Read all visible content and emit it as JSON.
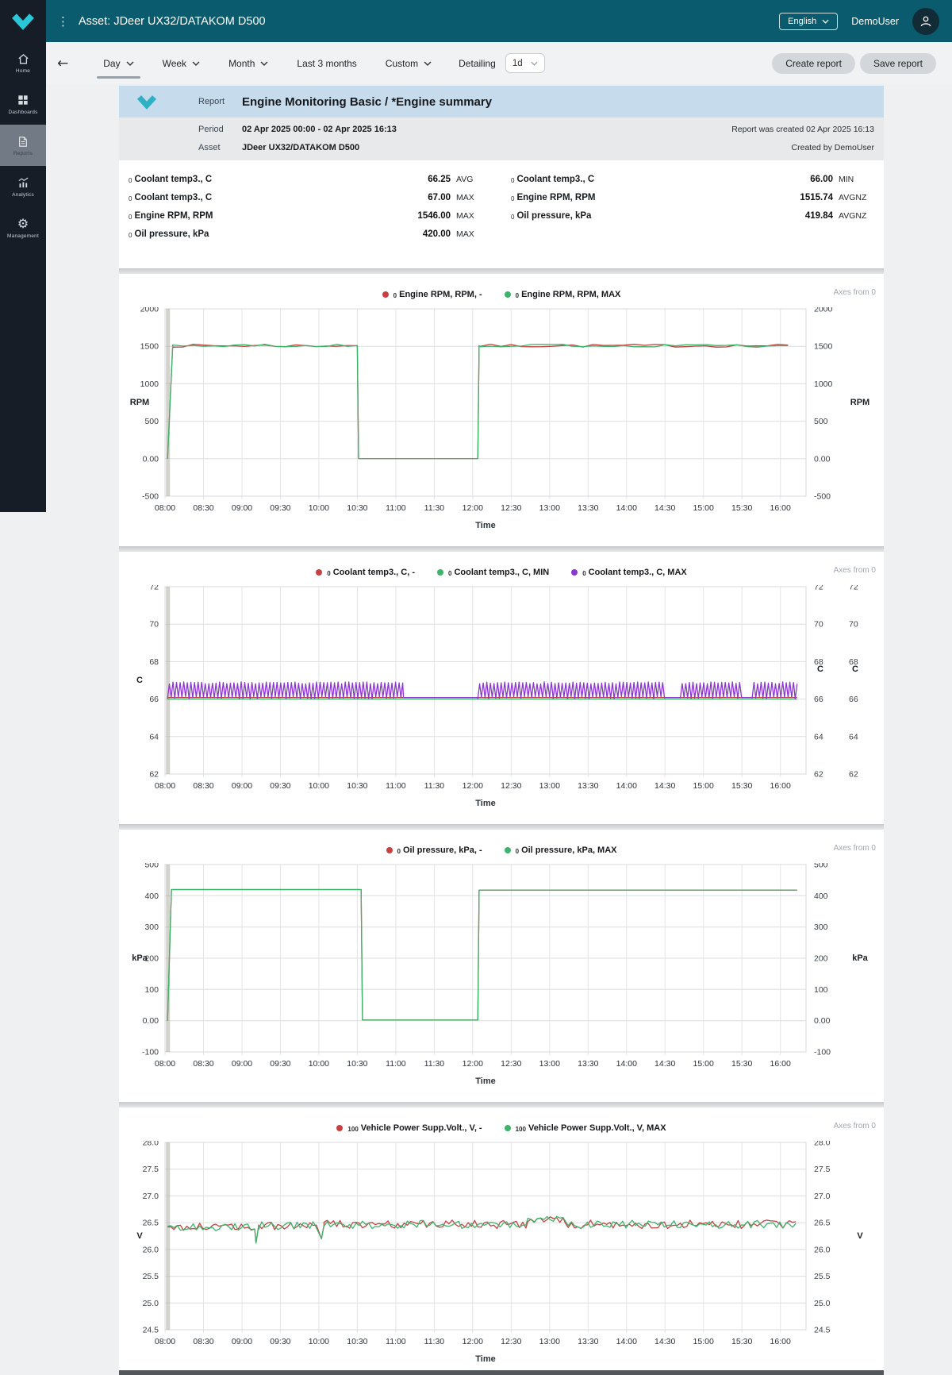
{
  "topbar": {
    "title": "Asset: JDeer UX32/DATAKOM D500",
    "language": "English",
    "user": "DemoUser"
  },
  "sidebar": {
    "items": [
      {
        "label": "Home",
        "icon": "home-icon",
        "active": false
      },
      {
        "label": "Dashboards",
        "icon": "dashboards-icon",
        "active": false
      },
      {
        "label": "Reports",
        "icon": "reports-icon",
        "active": true
      },
      {
        "label": "Analytics",
        "icon": "analytics-icon",
        "active": false
      },
      {
        "label": "Management",
        "icon": "management-icon",
        "active": false
      }
    ]
  },
  "toolbar": {
    "ranges": [
      {
        "label": "Day",
        "chevron": true,
        "active": true
      },
      {
        "label": "Week",
        "chevron": true,
        "active": false
      },
      {
        "label": "Month",
        "chevron": true,
        "active": false
      },
      {
        "label": "Last 3 months",
        "chevron": false,
        "active": false
      },
      {
        "label": "Custom",
        "chevron": true,
        "active": false
      }
    ],
    "detailing_label": "Detailing",
    "detailing_value": "1d",
    "create_label": "Create report",
    "save_label": "Save report"
  },
  "report": {
    "kind_label": "Report",
    "title": "Engine Monitoring Basic / *Engine summary",
    "period_label": "Period",
    "period_value": "02 Apr 2025 00:00 - 02 Apr 2025 16:13",
    "created_note": "Report was created 02 Apr 2025 16:13",
    "asset_label": "Asset",
    "asset_value": "JDeer UX32/DATAKOM D500",
    "created_by": "Created by DemoUser"
  },
  "summary": {
    "left": [
      {
        "prefix": "0",
        "label": "Coolant temp3., C",
        "value": "66.25",
        "unit": "AVG"
      },
      {
        "prefix": "0",
        "label": "Coolant temp3., C",
        "value": "67.00",
        "unit": "MAX"
      },
      {
        "prefix": "0",
        "label": "Engine RPM, RPM",
        "value": "1546.00",
        "unit": "MAX"
      },
      {
        "prefix": "0",
        "label": "Oil pressure, kPa",
        "value": "420.00",
        "unit": "MAX"
      }
    ],
    "right": [
      {
        "prefix": "0",
        "label": "Coolant temp3., C",
        "value": "66.00",
        "unit": "MIN"
      },
      {
        "prefix": "0",
        "label": "Engine RPM, RPM",
        "value": "1515.74",
        "unit": "AVGNZ"
      },
      {
        "prefix": "0",
        "label": "Oil pressure, kPa",
        "value": "419.84",
        "unit": "AVGNZ"
      }
    ]
  },
  "chart_data": [
    {
      "name": "engine-rpm-chart",
      "type": "line",
      "note": "Axes from 0",
      "xlabel": "Time",
      "x_tick_labels": [
        "08:00",
        "08:30",
        "09:00",
        "09:30",
        "10:00",
        "10:30",
        "11:00",
        "11:30",
        "12:00",
        "12:30",
        "13:00",
        "13:30",
        "14:00",
        "14:30",
        "15:00",
        "15:30",
        "16:00"
      ],
      "x_domain_minutes": [
        0,
        500
      ],
      "ylim": [
        -500,
        2000
      ],
      "ytick_values": [
        2000,
        1500,
        1000,
        500,
        0,
        -500
      ],
      "ytick_labels": [
        "2000",
        "1500",
        "1000",
        "500",
        "0.00",
        "-500"
      ],
      "left_unit": "RPM",
      "right_units": [
        "RPM"
      ],
      "gap_band_t": 2,
      "legend": [
        {
          "prefix": "0",
          "label": "Engine RPM, RPM, -",
          "color": "#c94040"
        },
        {
          "prefix": "0",
          "label": "Engine RPM, RPM, MAX",
          "color": "#3bb56a"
        }
      ],
      "series": [
        {
          "name": "Engine RPM, RPM, -",
          "color": "#c94040",
          "segments": [
            {
              "type": "points",
              "pts": [
                [
                  2,
                  0
                ]
              ]
            },
            {
              "type": "ramp",
              "t0": 2,
              "t1": 6,
              "v0": 0,
              "v1": 1512
            },
            {
              "type": "noise",
              "t0": 6,
              "t1": 149,
              "base": 1508,
              "amp": 20,
              "step": 8
            },
            {
              "type": "points",
              "pts": [
                [
                  150,
                  1508
                ],
                [
                  151,
                  2
                ]
              ]
            },
            {
              "type": "flat",
              "t0": 151,
              "t1": 244,
              "v": 2
            },
            {
              "type": "points",
              "pts": [
                [
                  245,
                  1508
                ]
              ]
            },
            {
              "type": "noise",
              "t0": 246,
              "t1": 493,
              "base": 1508,
              "amp": 20,
              "step": 8
            }
          ]
        },
        {
          "name": "Engine RPM, RPM, MAX",
          "color": "#3bb56a",
          "segments": [
            {
              "type": "points",
              "pts": [
                [
                  2,
                  0
                ]
              ]
            },
            {
              "type": "ramp",
              "t0": 2,
              "t1": 6,
              "v0": 0,
              "v1": 1512
            },
            {
              "type": "noise",
              "t0": 6,
              "t1": 149,
              "base": 1508,
              "amp": 20,
              "step": 8
            },
            {
              "type": "points",
              "pts": [
                [
                  150,
                  1508
                ],
                [
                  151,
                  2
                ]
              ]
            },
            {
              "type": "flat",
              "t0": 151,
              "t1": 244,
              "v": 2
            },
            {
              "type": "points",
              "pts": [
                [
                  245,
                  1508
                ]
              ]
            },
            {
              "type": "noise",
              "t0": 246,
              "t1": 493,
              "base": 1508,
              "amp": 20,
              "step": 8
            }
          ]
        }
      ]
    },
    {
      "name": "coolant-temp-chart",
      "type": "line",
      "note": "Axes from 0",
      "xlabel": "Time",
      "x_tick_labels": [
        "08:00",
        "08:30",
        "09:00",
        "09:30",
        "10:00",
        "10:30",
        "11:00",
        "11:30",
        "12:00",
        "12:30",
        "13:00",
        "13:30",
        "14:00",
        "14:30",
        "15:00",
        "15:30",
        "16:00"
      ],
      "x_domain_minutes": [
        0,
        500
      ],
      "ylim": [
        62,
        72
      ],
      "ytick_values": [
        72,
        70,
        68,
        66,
        64,
        62
      ],
      "ytick_labels": [
        "72",
        "70",
        "68",
        "66",
        "64",
        "62"
      ],
      "left_unit": "C",
      "right_units": [
        "C",
        "C"
      ],
      "gap_band_t": 2,
      "legend": [
        {
          "prefix": "0",
          "label": "Coolant temp3., C, -",
          "color": "#c94040"
        },
        {
          "prefix": "0",
          "label": "Coolant temp3., C, MIN",
          "color": "#3bb56a"
        },
        {
          "prefix": "0",
          "label": "Coolant temp3., C, MAX",
          "color": "#8c35cf"
        }
      ],
      "series": [
        {
          "name": "Coolant temp3., C, -",
          "color": "#c94040",
          "segments": [
            {
              "type": "flat",
              "t0": 2,
              "t1": 493,
              "v": 66.08
            }
          ]
        },
        {
          "name": "Coolant temp3., C, MIN",
          "color": "#3bb56a",
          "segments": [
            {
              "type": "flat",
              "t0": 2,
              "t1": 493,
              "v": 66.0
            }
          ]
        },
        {
          "name": "Coolant temp3., C, MAX",
          "color": "#8c35cf",
          "segments": [
            {
              "type": "zigzag",
              "t0": 2,
              "t1": 186,
              "lo": 66.0,
              "hi": 66.92,
              "step": 1.4
            },
            {
              "type": "flat",
              "t0": 186,
              "t1": 244,
              "v": 66.08
            },
            {
              "type": "zigzag",
              "t0": 244,
              "t1": 390,
              "lo": 66.0,
              "hi": 66.92,
              "step": 1.4
            },
            {
              "type": "flat",
              "t0": 390,
              "t1": 402,
              "v": 66.08
            },
            {
              "type": "zigzag",
              "t0": 402,
              "t1": 450,
              "lo": 66.0,
              "hi": 66.92,
              "step": 1.4
            },
            {
              "type": "flat",
              "t0": 450,
              "t1": 458,
              "v": 66.08
            },
            {
              "type": "zigzag",
              "t0": 458,
              "t1": 493,
              "lo": 66.0,
              "hi": 66.92,
              "step": 1.4
            }
          ]
        }
      ]
    },
    {
      "name": "oil-pressure-chart",
      "type": "line",
      "note": "Axes from 0",
      "xlabel": "Time",
      "x_tick_labels": [
        "08:00",
        "08:30",
        "09:00",
        "09:30",
        "10:00",
        "10:30",
        "11:00",
        "11:30",
        "12:00",
        "12:30",
        "13:00",
        "13:30",
        "14:00",
        "14:30",
        "15:00",
        "15:30",
        "16:00"
      ],
      "x_domain_minutes": [
        0,
        500
      ],
      "ylim": [
        -100,
        500
      ],
      "ytick_values": [
        500,
        400,
        300,
        200,
        100,
        0,
        -100
      ],
      "ytick_labels": [
        "500",
        "400",
        "300",
        "200",
        "100",
        "0.00",
        "-100"
      ],
      "left_unit": "kPa",
      "right_units": [
        "kPa"
      ],
      "gap_band_t": 2,
      "legend": [
        {
          "prefix": "0",
          "label": "Oil pressure, kPa, -",
          "color": "#c94040"
        },
        {
          "prefix": "0",
          "label": "Oil pressure, kPa, MAX",
          "color": "#3bb56a"
        }
      ],
      "series": [
        {
          "name": "Oil pressure, kPa, -",
          "color": "#c94040",
          "segments": [
            {
              "type": "points",
              "pts": [
                [
                  2,
                  0
                ]
              ]
            },
            {
              "type": "ramp",
              "t0": 2,
              "t1": 5,
              "v0": 0,
              "v1": 420
            },
            {
              "type": "flat",
              "t0": 5,
              "t1": 152,
              "v": 420
            },
            {
              "type": "points",
              "pts": [
                [
                  153,
                  420
                ],
                [
                  154,
                  2
                ]
              ]
            },
            {
              "type": "flat",
              "t0": 154,
              "t1": 244,
              "v": 2
            },
            {
              "type": "points",
              "pts": [
                [
                  245,
                  418
                ]
              ]
            },
            {
              "type": "flat",
              "t0": 246,
              "t1": 493,
              "v": 418
            }
          ]
        },
        {
          "name": "Oil pressure, kPa, MAX",
          "color": "#3bb56a",
          "segments": [
            {
              "type": "points",
              "pts": [
                [
                  2,
                  0
                ]
              ]
            },
            {
              "type": "ramp",
              "t0": 2,
              "t1": 5,
              "v0": 0,
              "v1": 420
            },
            {
              "type": "flat",
              "t0": 5,
              "t1": 152,
              "v": 420
            },
            {
              "type": "points",
              "pts": [
                [
                  153,
                  420
                ],
                [
                  154,
                  2
                ]
              ]
            },
            {
              "type": "flat",
              "t0": 154,
              "t1": 244,
              "v": 2
            },
            {
              "type": "points",
              "pts": [
                [
                  245,
                  418
                ]
              ]
            },
            {
              "type": "flat",
              "t0": 246,
              "t1": 493,
              "v": 418
            }
          ]
        }
      ]
    },
    {
      "name": "vehicle-voltage-chart",
      "type": "line",
      "note": "Axes from 0",
      "xlabel": "Time",
      "x_tick_labels": [
        "08:00",
        "08:30",
        "09:00",
        "09:30",
        "10:00",
        "10:30",
        "11:00",
        "11:30",
        "12:00",
        "12:30",
        "13:00",
        "13:30",
        "14:00",
        "14:30",
        "15:00",
        "15:30",
        "16:00"
      ],
      "x_domain_minutes": [
        0,
        500
      ],
      "ylim": [
        24.5,
        28
      ],
      "ytick_values": [
        28,
        27.5,
        27,
        26.5,
        26,
        25.5,
        25,
        24.5
      ],
      "ytick_labels": [
        "28.0",
        "27.5",
        "27.0",
        "26.5",
        "26.0",
        "25.5",
        "25.0",
        "24.5"
      ],
      "left_unit": "V",
      "right_units": [
        "V"
      ],
      "gap_band_t": 2,
      "legend": [
        {
          "prefix": "100",
          "label": "Vehicle Power Supp.Volt., V, -",
          "color": "#c94040"
        },
        {
          "prefix": "100",
          "label": "Vehicle Power Supp.Volt., V, MAX",
          "color": "#3bb56a"
        }
      ],
      "series": [
        {
          "name": "Vehicle Power Supp.Volt., V, -",
          "color": "#c94040",
          "segments": [
            {
              "type": "noise",
              "t0": 2,
              "t1": 68,
              "base": 26.42,
              "amp": 0.07,
              "step": 2.5
            },
            {
              "type": "points",
              "pts": [
                [
                  70,
                  26.38
                ],
                [
                  71,
                  26.12
                ],
                [
                  73,
                  26.44
                ]
              ]
            },
            {
              "type": "noise",
              "t0": 73,
              "t1": 120,
              "base": 26.44,
              "amp": 0.08,
              "step": 2.5
            },
            {
              "type": "points",
              "pts": [
                [
                  122,
                  26.2
                ],
                [
                  124,
                  26.45
                ]
              ]
            },
            {
              "type": "noise",
              "t0": 124,
              "t1": 283,
              "base": 26.47,
              "amp": 0.08,
              "step": 2.5
            },
            {
              "type": "noise",
              "t0": 283,
              "t1": 312,
              "base": 26.56,
              "amp": 0.06,
              "step": 2.5
            },
            {
              "type": "noise",
              "t0": 312,
              "t1": 493,
              "base": 26.47,
              "amp": 0.08,
              "step": 2.5
            }
          ]
        },
        {
          "name": "Vehicle Power Supp.Volt., V, MAX",
          "color": "#3bb56a",
          "segments": [
            {
              "type": "noise",
              "t0": 2,
              "t1": 68,
              "base": 26.42,
              "amp": 0.07,
              "step": 2.5
            },
            {
              "type": "points",
              "pts": [
                [
                  70,
                  26.38
                ],
                [
                  71,
                  26.12
                ],
                [
                  73,
                  26.44
                ]
              ]
            },
            {
              "type": "noise",
              "t0": 73,
              "t1": 120,
              "base": 26.44,
              "amp": 0.08,
              "step": 2.5
            },
            {
              "type": "points",
              "pts": [
                [
                  122,
                  26.2
                ],
                [
                  124,
                  26.45
                ]
              ]
            },
            {
              "type": "noise",
              "t0": 124,
              "t1": 283,
              "base": 26.47,
              "amp": 0.08,
              "step": 2.5
            },
            {
              "type": "noise",
              "t0": 283,
              "t1": 312,
              "base": 26.56,
              "amp": 0.06,
              "step": 2.5
            },
            {
              "type": "noise",
              "t0": 312,
              "t1": 493,
              "base": 26.47,
              "amp": 0.08,
              "step": 2.5
            }
          ]
        }
      ]
    }
  ]
}
